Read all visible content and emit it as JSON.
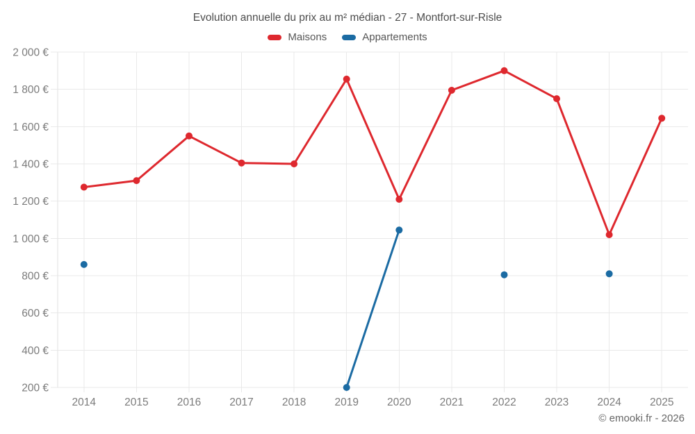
{
  "chart_data": {
    "type": "line",
    "title": "Evolution annuelle du prix au m² médian - 27 - Montfort-sur-Risle",
    "categories": [
      "2014",
      "2015",
      "2016",
      "2017",
      "2018",
      "2019",
      "2020",
      "2021",
      "2022",
      "2023",
      "2024",
      "2025"
    ],
    "series": [
      {
        "name": "Maisons",
        "color": "#de282e",
        "values": [
          1275,
          1310,
          1550,
          1405,
          1400,
          1855,
          1210,
          1795,
          1900,
          1750,
          1020,
          1645
        ]
      },
      {
        "name": "Appartements",
        "color": "#1b6ba3",
        "values": [
          860,
          null,
          null,
          null,
          null,
          200,
          1045,
          null,
          805,
          null,
          810,
          null
        ]
      }
    ],
    "ylim": [
      200,
      2000
    ],
    "yticks": [
      200,
      400,
      600,
      800,
      1000,
      1200,
      1400,
      1600,
      1800,
      2000
    ],
    "ytick_labels": [
      "200 €",
      "400 €",
      "600 €",
      "800 €",
      "1 000 €",
      "1 200 €",
      "1 400 €",
      "1 600 €",
      "1 800 €",
      "2 000 €"
    ],
    "grid": true,
    "legend_position": "top",
    "watermark": "© emooki.fr - 2026"
  }
}
